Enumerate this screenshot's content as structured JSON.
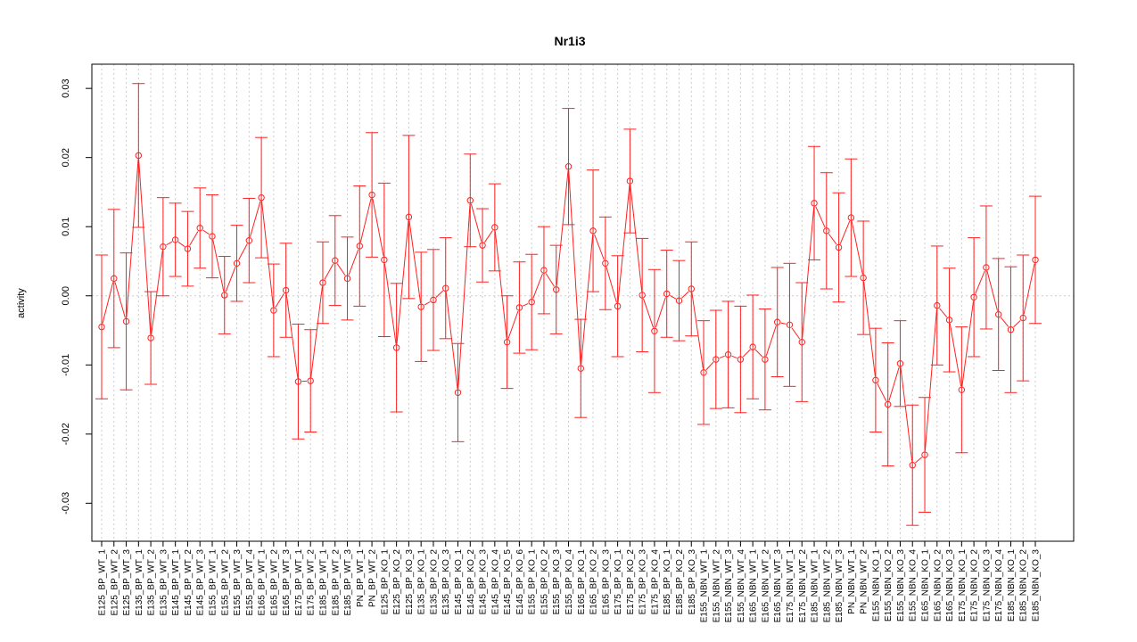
{
  "chart_data": {
    "type": "line",
    "title": "Nr1i3",
    "xlabel": "",
    "ylabel": "activity",
    "ylim": [
      -0.0355,
      0.0335
    ],
    "yticks": [
      -0.03,
      -0.02,
      -0.01,
      0.0,
      0.01,
      0.02,
      0.03
    ],
    "ytick_labels": [
      "-0.03",
      "-0.02",
      "-0.01",
      "0.00",
      "0.01",
      "0.02",
      "0.03"
    ],
    "grid": true,
    "colors": {
      "series": "#ff2020",
      "grid": "#cccccc",
      "axis": "#000000"
    },
    "categories": [
      "E125_BP_WT_1",
      "E125_BP_WT_2",
      "E125_BP_WT_3",
      "E135_BP_WT_1",
      "E135_BP_WT_2",
      "E135_BP_WT_3",
      "E145_BP_WT_1",
      "E145_BP_WT_2",
      "E145_BP_WT_3",
      "E155_BP_WT_1",
      "E155_BP_WT_2",
      "E155_BP_WT_3",
      "E155_BP_WT_4",
      "E165_BP_WT_1",
      "E165_BP_WT_2",
      "E165_BP_WT_3",
      "E175_BP_WT_1",
      "E175_BP_WT_2",
      "E185_BP_WT_1",
      "E185_BP_WT_2",
      "E185_BP_WT_3",
      "PN_BP_WT_1",
      "PN_BP_WT_2",
      "E125_BP_KO_1",
      "E125_BP_KO_2",
      "E125_BP_KO_3",
      "E135_BP_KO_1",
      "E135_BP_KO_2",
      "E135_BP_KO_3",
      "E145_BP_KO_1",
      "E145_BP_KO_2",
      "E145_BP_KO_3",
      "E145_BP_KO_4",
      "E145_BP_KO_5",
      "E145_BP_KO_6",
      "E155_BP_KO_1",
      "E155_BP_KO_2",
      "E155_BP_KO_3",
      "E155_BP_KO_4",
      "E165_BP_KO_1",
      "E165_BP_KO_2",
      "E165_BP_KO_3",
      "E175_BP_KO_1",
      "E175_BP_KO_2",
      "E175_BP_KO_3",
      "E175_BP_KO_4",
      "E185_BP_KO_1",
      "E185_BP_KO_2",
      "E185_BP_KO_3",
      "E155_NBN_WT_1",
      "E155_NBN_WT_2",
      "E155_NBN_WT_3",
      "E155_NBN_WT_4",
      "E165_NBN_WT_1",
      "E165_NBN_WT_2",
      "E165_NBN_WT_3",
      "E175_NBN_WT_1",
      "E175_NBN_WT_2",
      "E185_NBN_WT_1",
      "E185_NBN_WT_2",
      "E185_NBN_WT_3",
      "PN_NBN_WT_1",
      "PN_NBN_WT_2",
      "E155_NBN_KO_1",
      "E155_NBN_KO_2",
      "E155_NBN_KO_3",
      "E155_NBN_KO_4",
      "E165_NBN_KO_1",
      "E165_NBN_KO_2",
      "E165_NBN_KO_3",
      "E175_NBN_KO_1",
      "E175_NBN_KO_2",
      "E175_NBN_KO_3",
      "E175_NBN_KO_4",
      "E185_NBN_KO_1",
      "E185_NBN_KO_2",
      "E185_NBN_KO_3"
    ],
    "values": [
      -0.0045,
      0.0025,
      -0.0037,
      0.0203,
      -0.0061,
      0.0071,
      0.0081,
      0.0068,
      0.0098,
      0.0086,
      0.0001,
      0.0047,
      0.008,
      0.0142,
      -0.0021,
      0.0008,
      -0.0124,
      -0.0123,
      0.0019,
      0.0051,
      0.0025,
      0.0072,
      0.0146,
      0.0052,
      -0.0075,
      0.0114,
      -0.0016,
      -0.0006,
      0.0011,
      -0.014,
      0.0138,
      0.0073,
      0.0099,
      -0.0067,
      -0.0017,
      -0.0009,
      0.0037,
      0.0009,
      0.0187,
      -0.0105,
      0.0094,
      0.0047,
      -0.0015,
      0.0166,
      0.0001,
      -0.0051,
      0.0003,
      -0.0007,
      0.001,
      -0.0111,
      -0.0092,
      -0.0085,
      -0.0092,
      -0.0074,
      -0.0092,
      -0.0038,
      -0.0042,
      -0.0067,
      0.0134,
      0.0094,
      0.007,
      0.0113,
      0.0026,
      -0.0122,
      -0.0157,
      -0.0098,
      -0.0245,
      -0.023,
      -0.0014,
      -0.0035,
      -0.0136,
      -0.0002,
      0.0041,
      -0.0027,
      -0.0049,
      -0.0032,
      0.0052
    ],
    "errors": [
      0.0104,
      0.01,
      0.0099,
      0.0104,
      0.0067,
      0.0071,
      0.0053,
      0.0054,
      0.0058,
      0.006,
      0.0056,
      0.0055,
      0.0061,
      0.0087,
      0.0067,
      0.0068,
      0.0083,
      0.0074,
      0.0059,
      0.0065,
      0.006,
      0.0087,
      0.009,
      0.0111,
      0.0093,
      0.0118,
      0.0079,
      0.0073,
      0.0073,
      0.0071,
      0.0067,
      0.0053,
      0.0063,
      0.0067,
      0.0066,
      0.0069,
      0.0063,
      0.0064,
      0.0084,
      0.0071,
      0.0088,
      0.0067,
      0.0073,
      0.0075,
      0.0082,
      0.0089,
      0.0063,
      0.0058,
      0.0068,
      0.0075,
      0.0071,
      0.0077,
      0.0077,
      0.0075,
      0.0073,
      0.0079,
      0.0089,
      0.0086,
      0.0082,
      0.0084,
      0.0079,
      0.0085,
      0.0082,
      0.0075,
      0.0089,
      0.0062,
      0.0087,
      0.0083,
      0.0086,
      0.0075,
      0.0091,
      0.0086,
      0.0089,
      0.0081,
      0.0091,
      0.0091,
      0.0092
    ]
  }
}
